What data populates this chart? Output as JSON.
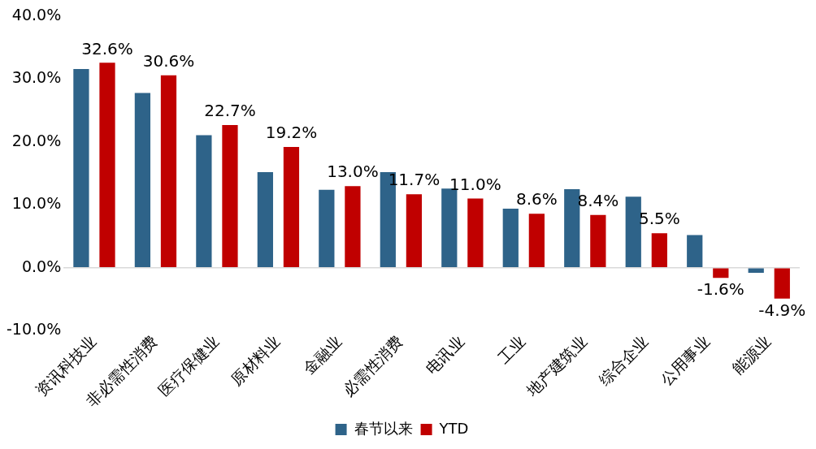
{
  "chart_data": {
    "type": "bar",
    "categories": [
      "资讯科技业",
      "非必需性消费",
      "医疗保健业",
      "原材料业",
      "金融业",
      "必需性消费",
      "电讯业",
      "工业",
      "地产建筑业",
      "综合企业",
      "公用事业",
      "能源业"
    ],
    "series": [
      {
        "name": "春节以来",
        "color": "#2e6389",
        "values": [
          31.6,
          27.8,
          21.1,
          15.2,
          12.4,
          15.2,
          12.6,
          9.4,
          12.5,
          11.3,
          5.2,
          -0.8
        ]
      },
      {
        "name": "YTD",
        "color": "#c00000",
        "values": [
          32.6,
          30.6,
          22.7,
          19.2,
          13.0,
          11.7,
          11.0,
          8.6,
          8.4,
          5.5,
          -1.6,
          -4.9
        ],
        "value_labels": [
          "32.6%",
          "30.6%",
          "22.7%",
          "19.2%",
          "13.0%",
          "11.7%",
          "11.0%",
          "8.6%",
          "8.4%",
          "5.5%",
          "-1.6%",
          "-4.9%"
        ]
      }
    ],
    "ylim": [
      -10,
      40
    ],
    "yticks": [
      {
        "value": -10,
        "label": "-10.0%"
      },
      {
        "value": 0,
        "label": "0.0%"
      },
      {
        "value": 10,
        "label": "10.0%"
      },
      {
        "value": 20,
        "label": "20.0%"
      },
      {
        "value": 30,
        "label": "30.0%"
      },
      {
        "value": 40,
        "label": "40.0%"
      }
    ],
    "legend": "bottom"
  }
}
